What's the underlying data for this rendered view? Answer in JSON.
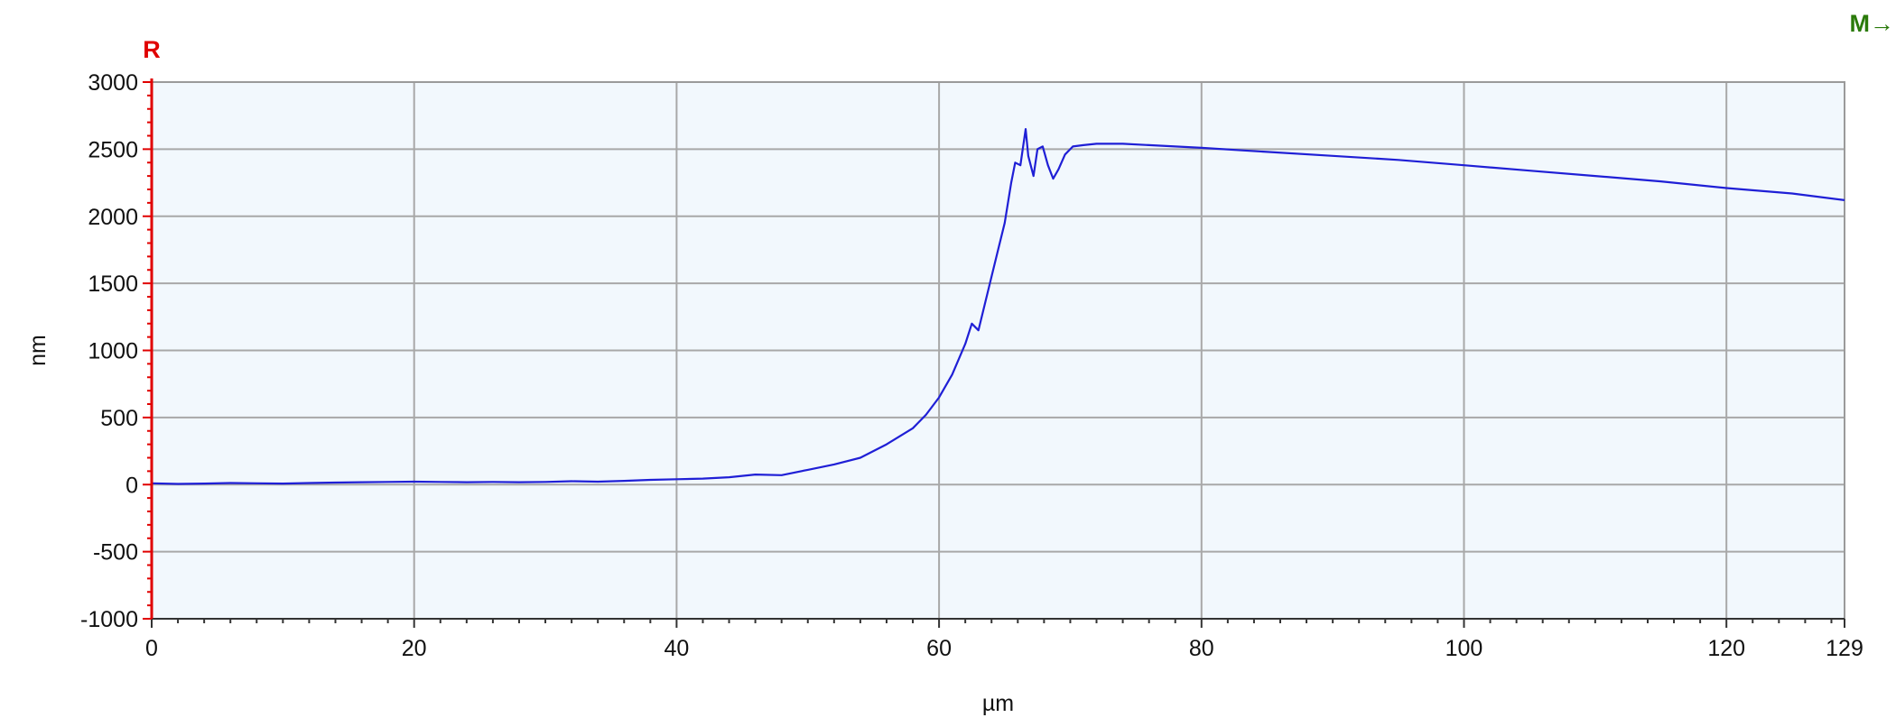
{
  "chart_data": {
    "type": "line",
    "title": "",
    "xlabel": "µm",
    "ylabel": "nm",
    "xlim": [
      0,
      129
    ],
    "ylim": [
      -1000,
      3000
    ],
    "x_ticks": [
      0,
      20,
      40,
      60,
      80,
      100,
      120,
      129
    ],
    "x_tick_labels": [
      "0",
      "20",
      "40",
      "60",
      "80",
      "100",
      "120",
      "129"
    ],
    "y_ticks": [
      3000,
      2500,
      2000,
      1500,
      1000,
      500,
      0,
      -500,
      -1000
    ],
    "y_tick_labels": [
      "3000",
      "2500",
      "2000",
      "1500",
      "1000",
      "500",
      "0",
      "-500",
      "-1000"
    ],
    "grid": true,
    "colors": {
      "line": "#1f1fd6",
      "plot_bg": "#f2f8fd",
      "grid": "#a8a8a8",
      "cursor_r": "#e00000",
      "cursor_m": "#2a7a0a"
    },
    "markers": {
      "r_label": "R",
      "m_label": "M→",
      "r_x": 0
    },
    "series": [
      {
        "x": [
          0,
          2,
          4,
          6,
          8,
          10,
          12,
          14,
          16,
          18,
          20,
          22,
          24,
          26,
          28,
          30,
          32,
          34,
          36,
          38,
          40,
          42,
          44,
          46,
          48,
          50,
          52,
          54,
          56,
          58,
          59,
          60,
          61,
          62,
          62.5,
          63,
          64,
          64.5,
          65,
          65.5,
          65.8,
          66.2,
          66.6,
          66.8,
          67.2,
          67.5,
          67.9,
          68.3,
          68.7,
          69.1,
          69.6,
          70.2,
          71,
          72,
          74,
          76,
          78,
          80,
          85,
          90,
          95,
          100,
          105,
          110,
          115,
          120,
          125,
          129
        ],
        "y": [
          10,
          5,
          8,
          12,
          10,
          8,
          12,
          15,
          18,
          20,
          22,
          20,
          18,
          20,
          18,
          20,
          25,
          22,
          28,
          35,
          40,
          45,
          55,
          75,
          70,
          110,
          150,
          200,
          300,
          420,
          520,
          650,
          820,
          1050,
          1200,
          1150,
          1550,
          1750,
          1950,
          2250,
          2400,
          2380,
          2650,
          2450,
          2300,
          2500,
          2520,
          2380,
          2280,
          2350,
          2460,
          2520,
          2530,
          2540,
          2540,
          2530,
          2520,
          2510,
          2480,
          2450,
          2420,
          2380,
          2340,
          2300,
          2260,
          2210,
          2170,
          2120
        ]
      }
    ]
  }
}
